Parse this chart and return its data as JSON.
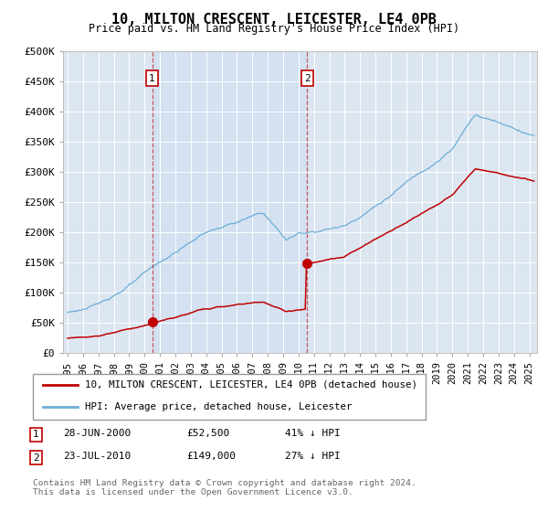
{
  "title": "10, MILTON CRESCENT, LEICESTER, LE4 0PB",
  "subtitle": "Price paid vs. HM Land Registry's House Price Index (HPI)",
  "ylabel_ticks": [
    "£0",
    "£50K",
    "£100K",
    "£150K",
    "£200K",
    "£250K",
    "£300K",
    "£350K",
    "£400K",
    "£450K",
    "£500K"
  ],
  "ytick_values": [
    0,
    50000,
    100000,
    150000,
    200000,
    250000,
    300000,
    350000,
    400000,
    450000,
    500000
  ],
  "ylim": [
    0,
    500000
  ],
  "xlim_start": 1994.7,
  "xlim_end": 2025.5,
  "hpi_color": "#6baed6",
  "price_color": "#c00000",
  "sale1_x": 2000.49,
  "sale1_y": 52500,
  "sale2_x": 2010.56,
  "sale2_y": 149000,
  "legend_line1": "10, MILTON CRESCENT, LEICESTER, LE4 0PB (detached house)",
  "legend_line2": "HPI: Average price, detached house, Leicester",
  "footer": "Contains HM Land Registry data © Crown copyright and database right 2024.\nThis data is licensed under the Open Government Licence v3.0.",
  "background_color": "#dce6f1",
  "shade_color": "#c5d9f1"
}
